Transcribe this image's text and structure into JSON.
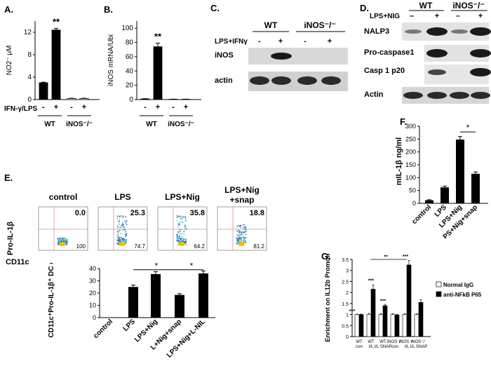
{
  "panel_labels": [
    "A.",
    "B.",
    "C.",
    "D.",
    "E.",
    "F.",
    "G."
  ],
  "chart_data": [
    {
      "id": "A",
      "type": "bar",
      "ylabel": "NO2⁻ μM",
      "ylim": [
        0,
        14
      ],
      "yticks": [
        0,
        4,
        8,
        12
      ],
      "values": [
        3.0,
        12.4,
        0.2,
        0.2
      ],
      "errors": [
        0.1,
        0.3,
        0.05,
        0.05
      ],
      "fills": [
        "#000000",
        "#000000",
        "#ffffff",
        "#ffffff"
      ],
      "treatment_label": "IFN-γ/LPS",
      "signs": [
        "-",
        "+",
        "-",
        "+"
      ],
      "groups": [
        "WT",
        "iNOS⁻/⁻"
      ],
      "significance": "**"
    },
    {
      "id": "B",
      "type": "bar",
      "ylabel": "iNOS mRNA/Ubi",
      "ylim": [
        0,
        110
      ],
      "yticks": [
        0,
        20,
        40,
        60,
        80,
        100
      ],
      "values": [
        1,
        74,
        0.5,
        0.5
      ],
      "errors": [
        0.3,
        5,
        0.1,
        0.1
      ],
      "fills": [
        "#000000",
        "#000000",
        "#ffffff",
        "#ffffff"
      ],
      "signs": [
        "-",
        "+",
        "-",
        "+"
      ],
      "groups": [
        "WT",
        "iNOS⁻/⁻"
      ],
      "significance": "**"
    },
    {
      "id": "F",
      "type": "bar",
      "ylabel": "mIL-1β ng/ml",
      "ylim": [
        0,
        300
      ],
      "yticks": [
        0,
        50,
        100,
        150,
        200,
        250,
        300
      ],
      "categories": [
        "control",
        "LPS",
        "LPS+Nig",
        "LPS+Nig+snap"
      ],
      "values": [
        12,
        62,
        248,
        115
      ],
      "errors": [
        2,
        5,
        12,
        7
      ],
      "significance": "*"
    },
    {
      "id": "E-bar",
      "type": "bar",
      "ylabel": "CD11c⁺Pro-IL-1β⁺ DC cells",
      "ylim": [
        0,
        40
      ],
      "yticks": [
        0,
        10,
        20,
        30,
        40
      ],
      "categories": [
        "control",
        "LPS",
        "LPS+Nig",
        "L+Nig+snap",
        "LPS+Nig+L-NIL"
      ],
      "values": [
        0,
        25,
        35.5,
        18.5,
        36
      ],
      "errors": [
        0,
        1.5,
        2,
        1,
        2
      ],
      "significance": [
        "*",
        "*"
      ]
    },
    {
      "id": "G",
      "type": "bar",
      "ylabel": "Enrichment on IL12b Promoter",
      "ylim": [
        0,
        3.5
      ],
      "yticks": [
        0,
        0.5,
        1,
        1.5,
        2,
        2.5,
        3,
        3.5
      ],
      "categories": [
        [
          "WT",
          "con"
        ],
        [
          "WT",
          "I/L"
        ],
        [
          "WT",
          "I/L SNAP"
        ],
        [
          "iNOS⁻/⁻",
          "con"
        ],
        [
          "iNOS⁻/⁻",
          "I/L"
        ],
        [
          "iNOS⁻/⁻",
          "I/L SNAP"
        ]
      ],
      "series": [
        {
          "name": "Normal IgG",
          "fill": "#ffffff",
          "values": [
            1,
            1,
            1,
            1,
            1,
            1
          ],
          "errors": [
            0.02,
            0.05,
            0.04,
            0.03,
            0.03,
            0.03
          ]
        },
        {
          "name": "anti-NFkB P65",
          "fill": "#000000",
          "values": [
            1,
            2.15,
            1.4,
            0.98,
            3.25,
            1.55
          ],
          "errors": [
            0.02,
            0.2,
            0.06,
            0.03,
            0.2,
            0.12
          ]
        }
      ],
      "annotations": [
        "***",
        "***",
        "***",
        "***",
        "**"
      ],
      "legend": "right"
    }
  ],
  "blot_C": {
    "groups": [
      "WT",
      "iNOS⁻/⁻"
    ],
    "treatment": "LPS+IFNγ",
    "signs": [
      "-",
      "+",
      "-",
      "+"
    ],
    "rows": [
      "iNOS",
      "actin"
    ]
  },
  "blot_D": {
    "groups": [
      "WT",
      "iNOS⁻/⁻"
    ],
    "treatment": "LPS+NIG",
    "signs": [
      "–",
      "+",
      "–",
      "+"
    ],
    "rows": [
      "NALP3",
      "Pro-caspase1",
      "Casp 1 p20",
      "Actin"
    ]
  },
  "flow_E": {
    "yaxis": "Pro-IL-1β",
    "xaxis": "CD11c",
    "plots": [
      {
        "title": "control",
        "upper": "0.0",
        "lower": "100"
      },
      {
        "title": "LPS",
        "upper": "25.3",
        "lower": "74.7"
      },
      {
        "title": "LPS+Nig",
        "upper": "35.8",
        "lower": "64.2"
      },
      {
        "title": "LPS+Nig",
        "title2": "+snap",
        "upper": "18.8",
        "lower": "81.2"
      }
    ]
  },
  "colors": {
    "bar": "#000000",
    "gate": "#d98ca0"
  }
}
